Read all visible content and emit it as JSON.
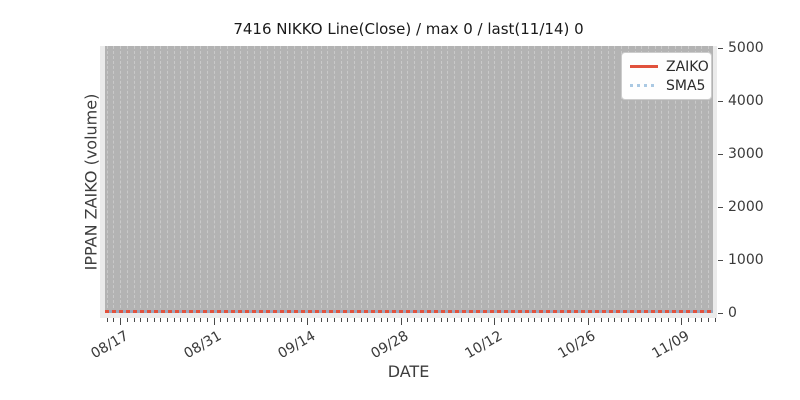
{
  "figure": {
    "title": "7416 NIKKO Line(Close) / max 0 / last(11/14) 0",
    "xlabel": "DATE",
    "ylabel": "IPPAN ZAIKO (volume)"
  },
  "axes": {
    "x_tick_labels": [
      "08/17",
      "08/31",
      "09/14",
      "09/28",
      "10/12",
      "10/26",
      "11/09"
    ],
    "y_tick_labels": [
      "0",
      "1000",
      "2000",
      "3000",
      "4000",
      "5000"
    ]
  },
  "legend": {
    "items": [
      {
        "label": "ZAIKO",
        "color": "#e1523d",
        "style": "solid"
      },
      {
        "label": "SMA5",
        "color": "#aac9e3",
        "style": "dotted"
      }
    ]
  },
  "colors": {
    "plot_bg": "#ebebeb",
    "band_bg": "#b3b3b3",
    "gridline": "#c9c9c9",
    "zaiko_line": "#e1523d",
    "sma5_line": "#aac9e3",
    "sma5_over_red": "#98a8bf",
    "tick": "#4a4a4a",
    "text": "#2b2b2b"
  },
  "chart_data": {
    "type": "line",
    "title": "7416 NIKKO Line(Close) / max 0 / last(11/14) 0",
    "xlabel": "DATE",
    "ylabel": "IPPAN ZAIKO (volume)",
    "x_ticks": [
      "08/17",
      "08/31",
      "09/14",
      "09/28",
      "10/12",
      "10/26",
      "11/09"
    ],
    "ylim": [
      0,
      5000
    ],
    "y_ticks": [
      0,
      1000,
      2000,
      3000,
      4000,
      5000
    ],
    "series": [
      {
        "name": "ZAIKO",
        "style": "solid",
        "color": "#e1523d",
        "values": [
          0,
          0,
          0,
          0,
          0,
          0,
          0
        ]
      },
      {
        "name": "SMA5",
        "style": "dotted",
        "color": "#aac9e3",
        "values": [
          0,
          0,
          0,
          0,
          0,
          0,
          0
        ]
      }
    ],
    "max": 0,
    "last_date": "11/14",
    "last_value": 0,
    "legend_position": "upper right",
    "grid": "vertical daily dashed lines",
    "y_axis_side": "right"
  }
}
